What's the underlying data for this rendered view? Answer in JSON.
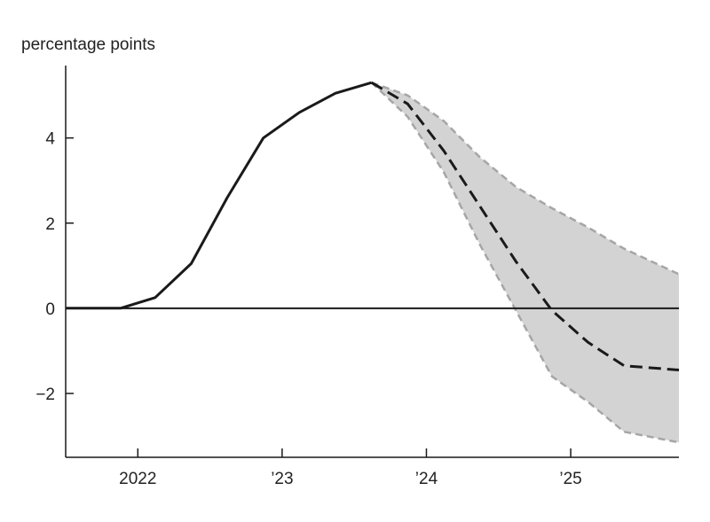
{
  "chart_data": {
    "type": "line",
    "ylabel": "percentage points",
    "xlim": [
      2021.5,
      2025.75
    ],
    "ylim": [
      -3.5,
      5.7
    ],
    "y_ticks": [
      {
        "value": 4,
        "label": "4"
      },
      {
        "value": 2,
        "label": "2"
      },
      {
        "value": 0,
        "label": "0"
      },
      {
        "value": -2,
        "label": "−2"
      }
    ],
    "x_ticks": [
      {
        "value": 2022,
        "label": "2022"
      },
      {
        "value": 2023,
        "label": "’23"
      },
      {
        "value": 2024,
        "label": "’24"
      },
      {
        "value": 2025,
        "label": "’25"
      }
    ],
    "zero_line": true,
    "grid": false,
    "series": [
      {
        "style": "solid",
        "x": [
          2021.5,
          2021.88,
          2022.12,
          2022.37,
          2022.62,
          2022.87,
          2023.12,
          2023.37,
          2023.62
        ],
        "y": [
          0.0,
          0.0,
          0.25,
          1.05,
          2.6,
          4.0,
          4.6,
          5.05,
          5.3
        ]
      },
      {
        "style": "dashed",
        "x": [
          2023.62,
          2023.87,
          2024.12,
          2024.37,
          2024.62,
          2024.87,
          2025.12,
          2025.37,
          2025.75
        ],
        "y": [
          5.3,
          4.8,
          3.7,
          2.4,
          1.1,
          -0.05,
          -0.8,
          -1.35,
          -1.45
        ]
      }
    ],
    "band": {
      "x": [
        2023.62,
        2023.87,
        2024.12,
        2024.37,
        2024.62,
        2024.87,
        2025.12,
        2025.37,
        2025.75
      ],
      "upper": [
        5.3,
        5.0,
        4.4,
        3.55,
        2.85,
        2.35,
        1.9,
        1.4,
        0.8
      ],
      "lower": [
        5.3,
        4.5,
        3.2,
        1.5,
        -0.05,
        -1.6,
        -2.2,
        -2.9,
        -3.15
      ]
    },
    "colors": {
      "line": "#1a1a1a",
      "band_fill": "#d3d3d3",
      "band_edge": "#a6a6a6",
      "axis": "#1a1a1a"
    }
  }
}
